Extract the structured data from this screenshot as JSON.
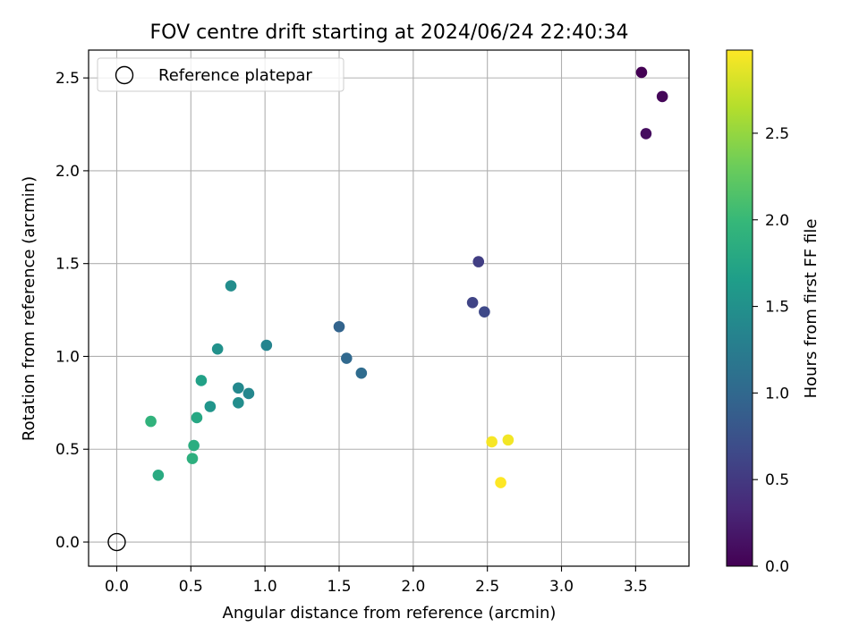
{
  "chart_data": {
    "type": "scatter",
    "title": "FOV centre drift starting at 2024/06/24 22:40:34",
    "xlabel": "Angular distance from reference (arcmin)",
    "ylabel": "Rotation from reference (arcmin)",
    "xlim": [
      -0.19,
      3.86
    ],
    "ylim": [
      -0.13,
      2.65
    ],
    "xticks": [
      0.0,
      0.5,
      1.0,
      1.5,
      2.0,
      2.5,
      3.0,
      3.5
    ],
    "xtick_labels": [
      "0.0",
      "0.5",
      "1.0",
      "1.5",
      "2.0",
      "2.5",
      "3.0",
      "3.5"
    ],
    "yticks": [
      0.0,
      0.5,
      1.0,
      1.5,
      2.0,
      2.5
    ],
    "ytick_labels": [
      "0.0",
      "0.5",
      "1.0",
      "1.5",
      "2.0",
      "2.5"
    ],
    "grid": true,
    "legend": {
      "placement": "top-left",
      "entries": [
        {
          "label": "Reference platepar",
          "marker": "hollow-circle"
        }
      ]
    },
    "reference_point": {
      "x": 0.0,
      "y": 0.0
    },
    "colormap": "viridis",
    "colorbar": {
      "label": "Hours from first FF file",
      "range": [
        0.0,
        2.98
      ],
      "ticks": [
        0.0,
        0.5,
        1.0,
        1.5,
        2.0,
        2.5
      ],
      "tick_labels": [
        "0.0",
        "0.5",
        "1.0",
        "1.5",
        "2.0",
        "2.5"
      ]
    },
    "points": [
      {
        "x": 3.54,
        "y": 2.53,
        "hours": 0.0
      },
      {
        "x": 3.68,
        "y": 2.4,
        "hours": 0.05
      },
      {
        "x": 3.57,
        "y": 2.2,
        "hours": 0.1
      },
      {
        "x": 2.44,
        "y": 1.51,
        "hours": 0.55
      },
      {
        "x": 2.4,
        "y": 1.29,
        "hours": 0.6
      },
      {
        "x": 2.48,
        "y": 1.24,
        "hours": 0.65
      },
      {
        "x": 1.5,
        "y": 1.16,
        "hours": 0.95
      },
      {
        "x": 1.55,
        "y": 0.99,
        "hours": 1.0
      },
      {
        "x": 1.65,
        "y": 0.91,
        "hours": 1.05
      },
      {
        "x": 0.77,
        "y": 1.38,
        "hours": 1.45
      },
      {
        "x": 1.01,
        "y": 1.06,
        "hours": 1.35
      },
      {
        "x": 0.68,
        "y": 1.04,
        "hours": 1.5
      },
      {
        "x": 0.82,
        "y": 0.83,
        "hours": 1.4
      },
      {
        "x": 0.89,
        "y": 0.8,
        "hours": 1.38
      },
      {
        "x": 0.82,
        "y": 0.75,
        "hours": 1.45
      },
      {
        "x": 0.63,
        "y": 0.73,
        "hours": 1.55
      },
      {
        "x": 0.57,
        "y": 0.87,
        "hours": 1.7
      },
      {
        "x": 0.54,
        "y": 0.67,
        "hours": 1.78
      },
      {
        "x": 0.23,
        "y": 0.65,
        "hours": 1.92
      },
      {
        "x": 0.52,
        "y": 0.52,
        "hours": 1.85
      },
      {
        "x": 0.51,
        "y": 0.45,
        "hours": 1.88
      },
      {
        "x": 0.28,
        "y": 0.36,
        "hours": 1.82
      },
      {
        "x": 2.53,
        "y": 0.54,
        "hours": 2.95
      },
      {
        "x": 2.64,
        "y": 0.55,
        "hours": 2.93
      },
      {
        "x": 2.59,
        "y": 0.32,
        "hours": 2.98
      }
    ]
  }
}
